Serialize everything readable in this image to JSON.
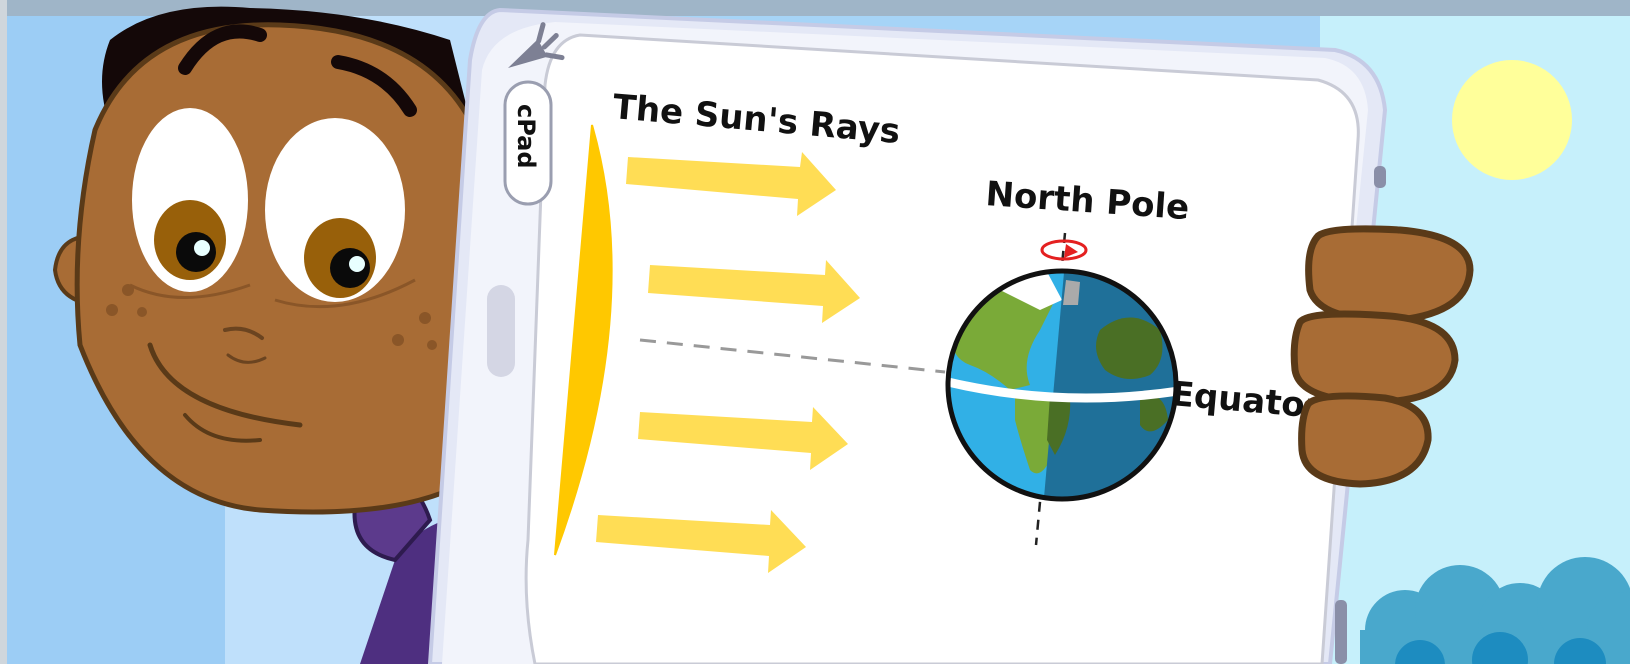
{
  "diagram": {
    "title": "The Sun's Rays",
    "labels": {
      "north_pole": "North Pole",
      "equator": "Equator"
    },
    "device_brand": "cPad",
    "colors": {
      "sky": "#9ccdf5",
      "sky_right": "#c6f0fb",
      "sun": "#ffff9a",
      "sun_edge": "#ffc800",
      "rays": "#ffdd55",
      "skin": "#a86c35",
      "skin_outline": "#5a3a18",
      "ocean_day": "#31b0e6",
      "ocean_night": "#1f7099",
      "land_day": "#7aaa38",
      "land_night": "#4a6f25",
      "spin_arrow": "#e42020",
      "tablet_frame": "#e4e8f6",
      "bushes": "#2b9ac8"
    },
    "icons": [
      "carrot-icon",
      "rotation-arrow-icon"
    ]
  }
}
